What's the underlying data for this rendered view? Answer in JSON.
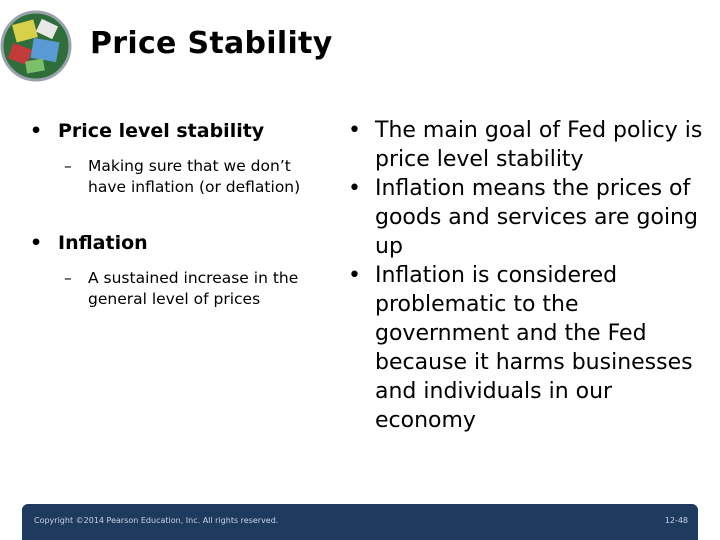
{
  "title": "Price Stability",
  "left": {
    "bullet1": "Price level stability",
    "sub1": "Making sure that we don’t have inflation (or deflation)",
    "bullet2": "Inflation",
    "sub2": "A sustained increase in the general level of prices"
  },
  "right": {
    "items": [
      "The main goal of Fed policy is price level stability",
      "Inflation means the prices of goods and services are going up",
      "Inflation is considered problematic to the government and the Fed because it harms businesses and individuals in our economy"
    ]
  },
  "footer": {
    "copyright": "Copyright ©2014 Pearson Education, Inc. All rights reserved.",
    "page": "12-48"
  },
  "colors": {
    "footer_bg": "#1f3a5f",
    "logo_accent": "#3b7a3b"
  },
  "icons": {
    "logo": "finance-collage-logo"
  }
}
